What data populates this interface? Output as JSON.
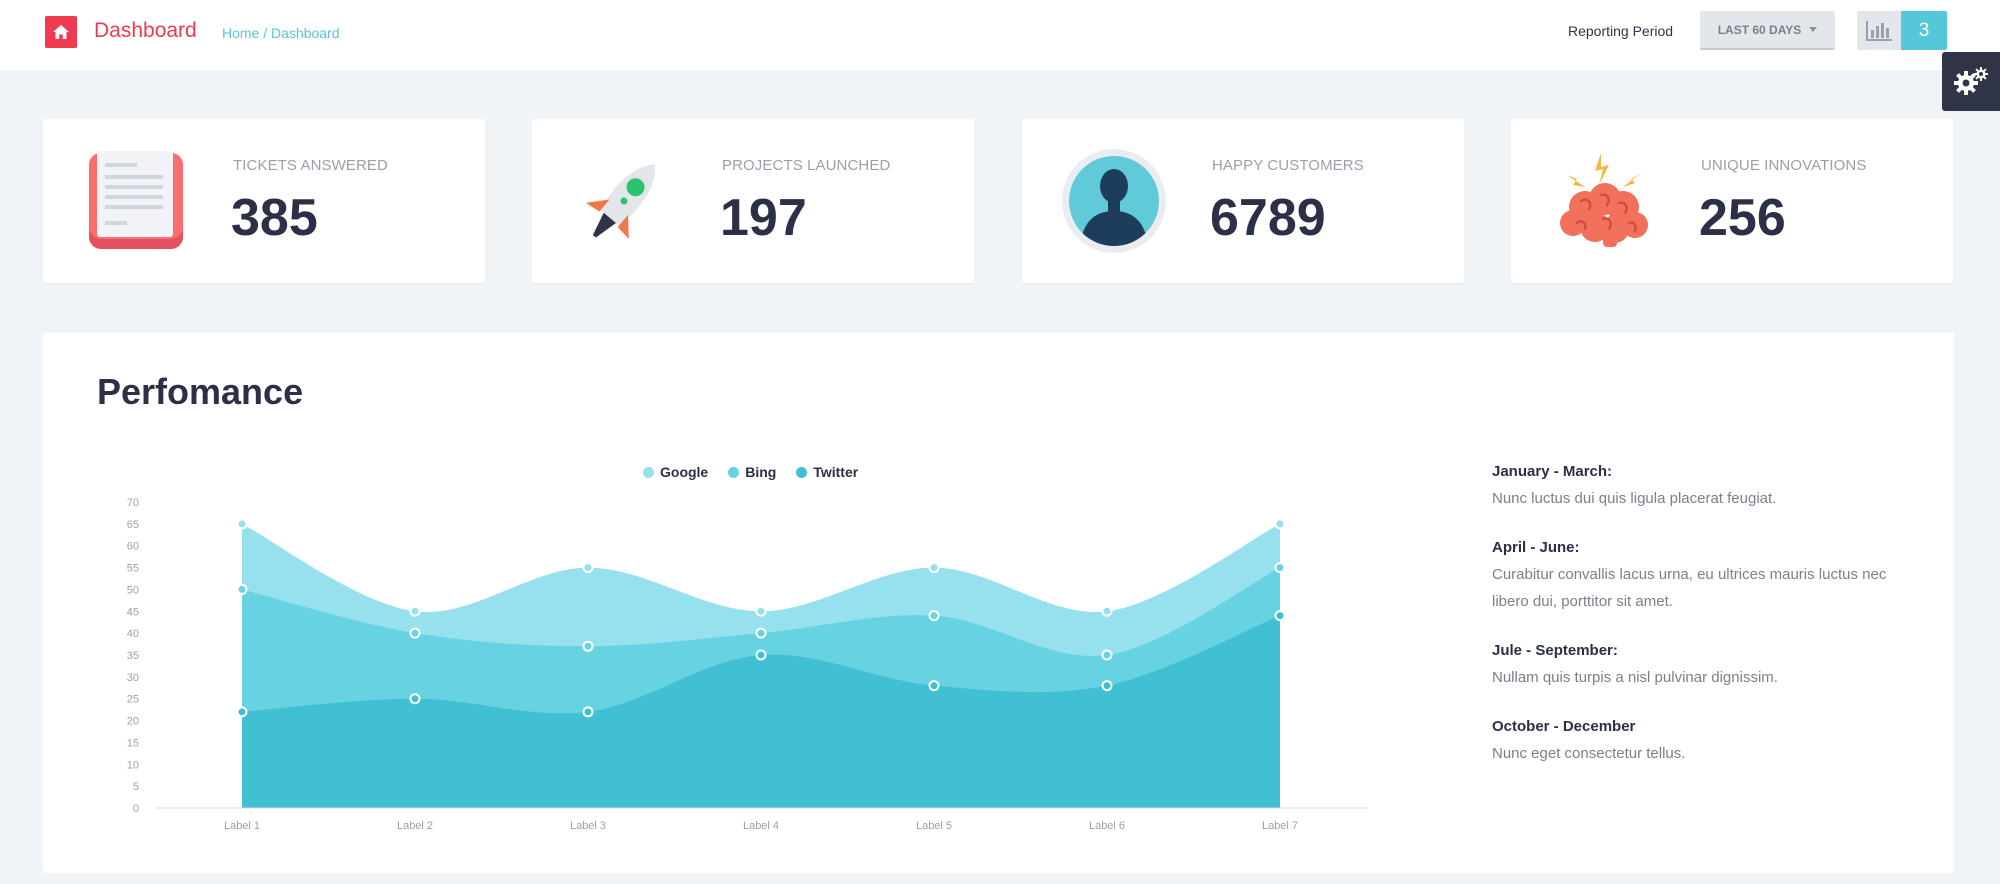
{
  "header": {
    "title": "Dashboard",
    "breadcrumb": "Home / Dashboard",
    "reporting_label": "Reporting Period",
    "period": "LAST 60 DAYS",
    "notification_count": "3"
  },
  "stats": [
    {
      "label": "TICKETS ANSWERED",
      "value": "385",
      "icon": "document-icon"
    },
    {
      "label": "PROJECTS LAUNCHED",
      "value": "197",
      "icon": "rocket-icon"
    },
    {
      "label": "HAPPY CUSTOMERS",
      "value": "6789",
      "icon": "user-avatar-icon"
    },
    {
      "label": "UNIQUE INNOVATIONS",
      "value": "256",
      "icon": "brain-icon"
    }
  ],
  "performance": {
    "title": "Perfomance",
    "notes": [
      {
        "title": "January - March:",
        "text": "Nunc luctus dui quis ligula placerat feugiat."
      },
      {
        "title": "April - June:",
        "text": "Curabitur convallis lacus urna, eu ultrices mauris luctus nec libero dui, porttitor sit amet."
      },
      {
        "title": "Jule - September:",
        "text": "Nullam quis turpis a nisl pulvinar dignissim."
      },
      {
        "title": "October - December",
        "text": "Nunc eget consectetur tellus."
      }
    ]
  },
  "colors": {
    "accent_red": "#ef3b4f",
    "accent_cyan": "#56c6d9",
    "dark": "#2f3447"
  },
  "chart_data": {
    "type": "area",
    "categories": [
      "Label 1",
      "Label 2",
      "Label 3",
      "Label 4",
      "Label 5",
      "Label 6",
      "Label 7"
    ],
    "series": [
      {
        "name": "Google",
        "values": [
          65,
          45,
          55,
          45,
          55,
          45,
          65
        ],
        "color": "#96e1ed"
      },
      {
        "name": "Bing",
        "values": [
          50,
          40,
          37,
          40,
          44,
          35,
          55
        ],
        "color": "#66d2e2"
      },
      {
        "name": "Twitter",
        "values": [
          22,
          25,
          22,
          35,
          28,
          28,
          44
        ],
        "color": "#41c0d3"
      }
    ],
    "y_ticks": [
      "0",
      "5",
      "10",
      "15",
      "20",
      "25",
      "30",
      "35",
      "40",
      "45",
      "50",
      "55",
      "60",
      "65",
      "70"
    ],
    "ylim": [
      0,
      70
    ],
    "legend": "top",
    "grid": false
  }
}
